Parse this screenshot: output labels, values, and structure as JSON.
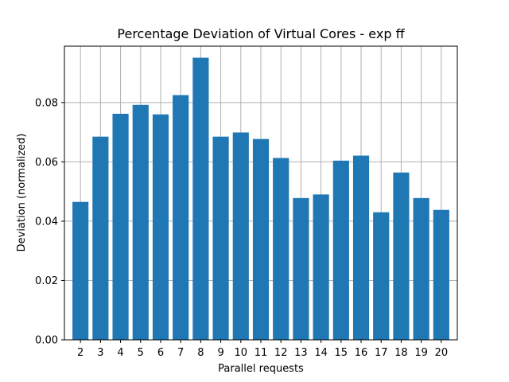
{
  "chart_data": {
    "type": "bar",
    "title": "Percentage Deviation of Virtual Cores - exp ff",
    "xlabel": "Parallel requests",
    "ylabel": "Deviation (normalized)",
    "categories": [
      "2",
      "3",
      "4",
      "5",
      "6",
      "7",
      "8",
      "9",
      "10",
      "11",
      "12",
      "13",
      "14",
      "15",
      "16",
      "17",
      "18",
      "19",
      "20"
    ],
    "values": [
      0.0465,
      0.0685,
      0.0762,
      0.0792,
      0.076,
      0.0825,
      0.0951,
      0.0685,
      0.0699,
      0.0677,
      0.0613,
      0.0478,
      0.049,
      0.0604,
      0.0621,
      0.043,
      0.0564,
      0.0478,
      0.0438
    ],
    "ylim": [
      0,
      0.099
    ],
    "yticks": [
      0.0,
      0.02,
      0.04,
      0.06,
      0.08
    ],
    "ytick_labels": [
      "0.00",
      "0.02",
      "0.04",
      "0.06",
      "0.08"
    ],
    "grid": true,
    "colors": {
      "bar": "#1f77b4",
      "grid": "#b0b0b0",
      "axis": "#000000"
    }
  }
}
